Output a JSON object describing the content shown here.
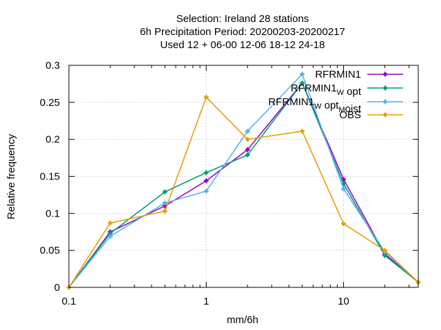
{
  "chart_data": {
    "type": "line",
    "title_lines": [
      "Selection: Ireland      28 stations",
      "6h Precipitation  Period: 20200203-20200217",
      "Used  12 + 06-00 12-06 18-12 24-18"
    ],
    "xlabel": "mm/6h",
    "ylabel": "Relative frequency",
    "xscale": "log",
    "xlim": [
      0.1,
      35
    ],
    "ylim": [
      0,
      0.3
    ],
    "xticks": [
      0.1,
      1,
      10
    ],
    "xtick_labels": [
      "0.1",
      "1",
      "10"
    ],
    "yticks": [
      0,
      0.05,
      0.1,
      0.15,
      0.2,
      0.25,
      0.3
    ],
    "ytick_labels": [
      "0",
      "0.05",
      "0.1",
      "0.15",
      "0.2",
      "0.25",
      "0.3"
    ],
    "grid": true,
    "legend_position": "top-right",
    "x": [
      0.1,
      0.2,
      0.5,
      1,
      2,
      5,
      10,
      20,
      35
    ],
    "series": [
      {
        "legend": {
          "main": "RFRMIN1",
          "parts": []
        },
        "color": "#9400d3",
        "values": [
          0.0,
          0.075,
          0.11,
          0.144,
          0.186,
          0.276,
          0.146,
          0.045,
          0.007
        ]
      },
      {
        "legend": {
          "main": "",
          "parts": [
            [
              "RFRMIN1",
              ""
            ],
            [
              "W",
              "sub"
            ],
            [
              " opt",
              ""
            ]
          ]
        },
        "color": "#009e73",
        "values": [
          0.0,
          0.073,
          0.129,
          0.155,
          0.179,
          0.276,
          0.14,
          0.043,
          0.007
        ]
      },
      {
        "legend": {
          "main": "",
          "parts": [
            [
              "RFRMIN1",
              ""
            ],
            [
              "W",
              "sub"
            ],
            [
              " opt",
              ""
            ],
            [
              "M",
              "sub"
            ],
            [
              "oist",
              ""
            ]
          ]
        },
        "color": "#56b4e9",
        "values": [
          0.0,
          0.069,
          0.114,
          0.13,
          0.211,
          0.288,
          0.133,
          0.048,
          0.007
        ]
      },
      {
        "legend": {
          "main": "OBS",
          "parts": []
        },
        "color": "#e69f00",
        "values": [
          0.0,
          0.087,
          0.103,
          0.257,
          0.2,
          0.211,
          0.086,
          0.05,
          0.007
        ]
      }
    ]
  }
}
